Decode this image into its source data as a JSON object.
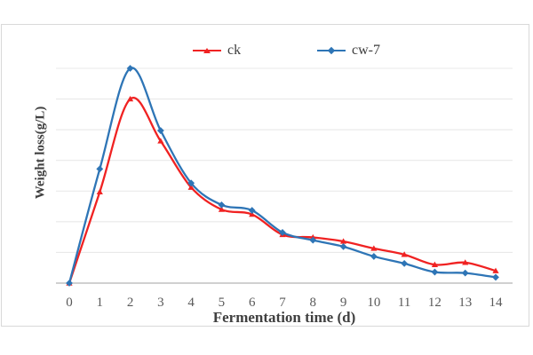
{
  "chart_data": {
    "type": "line",
    "title": "",
    "xlabel": "Fermentation time (d)",
    "ylabel": "Weight loss(g/L)",
    "categories": [
      "0",
      "1",
      "2",
      "3",
      "4",
      "5",
      "6",
      "7",
      "8",
      "9",
      "10",
      "11",
      "12",
      "13",
      "14"
    ],
    "series": [
      {
        "name": "ck",
        "color": "#f02222",
        "marker": "triangle",
        "smoothed": true,
        "values": [
          0,
          2.97,
          6.0,
          4.63,
          3.12,
          2.4,
          2.24,
          1.58,
          1.49,
          1.36,
          1.13,
          0.93,
          0.6,
          0.67,
          0.4
        ]
      },
      {
        "name": "cw-7",
        "color": "#2e75b6",
        "marker": "diamond",
        "smoothed": true,
        "values": [
          0,
          3.72,
          7.0,
          4.97,
          3.26,
          2.55,
          2.37,
          1.65,
          1.4,
          1.19,
          0.87,
          0.64,
          0.36,
          0.33,
          0.19
        ]
      }
    ],
    "ylim": [
      0,
      7
    ],
    "y_gridline_step": 1,
    "y_tick_labels_visible": false,
    "grid": "horizontal",
    "legend_position": "top-center",
    "style": {
      "gridline_color": "#e9e9e9",
      "axis_line_color": "#b3b3b3",
      "chart_border_color": "#d9d9d9",
      "tick_text_color": "#595959",
      "title_text_color": "#404040"
    }
  }
}
